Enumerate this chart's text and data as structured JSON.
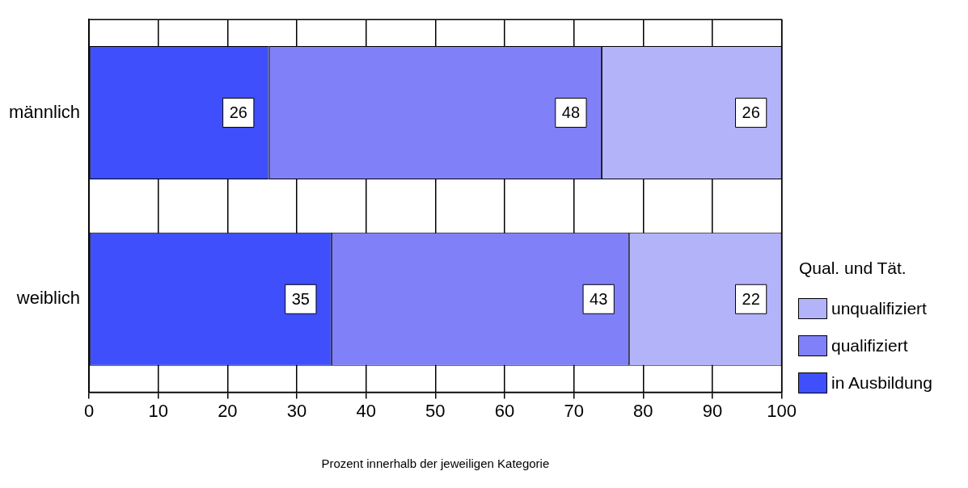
{
  "chart_data": {
    "type": "bar",
    "orientation": "horizontal",
    "stacked": true,
    "categories": [
      "männlich",
      "weiblich"
    ],
    "series": [
      {
        "name": "in Ausbildung",
        "color": "#3f4ffc",
        "values": [
          26,
          35
        ]
      },
      {
        "name": "qualifiziert",
        "color": "#8080f8",
        "values": [
          48,
          43
        ]
      },
      {
        "name": "unqualifiziert",
        "color": "#b3b3fa",
        "values": [
          26,
          22
        ]
      }
    ],
    "xlim": [
      0,
      100
    ],
    "xticks": [
      0,
      10,
      20,
      30,
      40,
      50,
      60,
      70,
      80,
      90,
      100
    ],
    "xlabel": "Prozent innerhalb der jeweiligen Kategorie",
    "legend_title": "Qual. und Tät.",
    "legend": "bottom right",
    "grid": "x",
    "data_labels": true
  }
}
